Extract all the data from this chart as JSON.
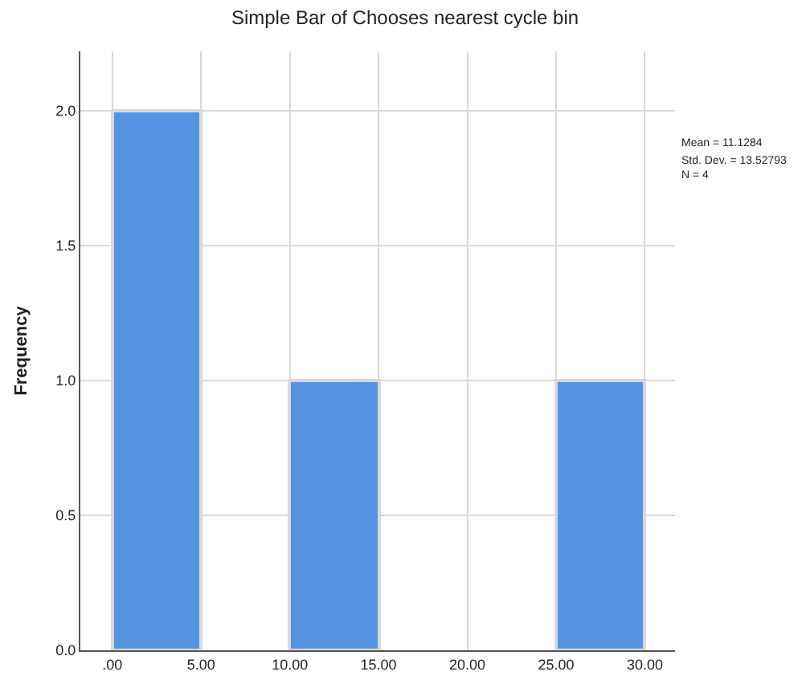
{
  "chart_data": {
    "type": "histogram",
    "title": "Simple Bar of Chooses nearest cycle bin",
    "ylabel": "Frequency",
    "bins": [
      0,
      5,
      10,
      15,
      20,
      25,
      30
    ],
    "values": [
      2,
      0,
      1,
      0,
      0,
      1
    ],
    "color": "#5694e3",
    "xlim": [
      -1.8,
      31.7
    ],
    "ylim": [
      0,
      2.22
    ],
    "xticks": [
      {
        "value": 0,
        "label": ".00"
      },
      {
        "value": 5,
        "label": "5.00"
      },
      {
        "value": 10,
        "label": "10.00"
      },
      {
        "value": 15,
        "label": "15.00"
      },
      {
        "value": 20,
        "label": "20.00"
      },
      {
        "value": 25,
        "label": "25.00"
      },
      {
        "value": 30,
        "label": "30.00"
      }
    ],
    "yticks": [
      {
        "value": 0,
        "label": "0.0"
      },
      {
        "value": 0.5,
        "label": "0.5"
      },
      {
        "value": 1,
        "label": "1.0"
      },
      {
        "value": 1.5,
        "label": "1.5"
      },
      {
        "value": 2,
        "label": "2.0"
      }
    ],
    "grid": true,
    "annotations": [
      "Mean = 11.1284",
      "Std. Dev. = 13.52793",
      "N = 4"
    ]
  }
}
